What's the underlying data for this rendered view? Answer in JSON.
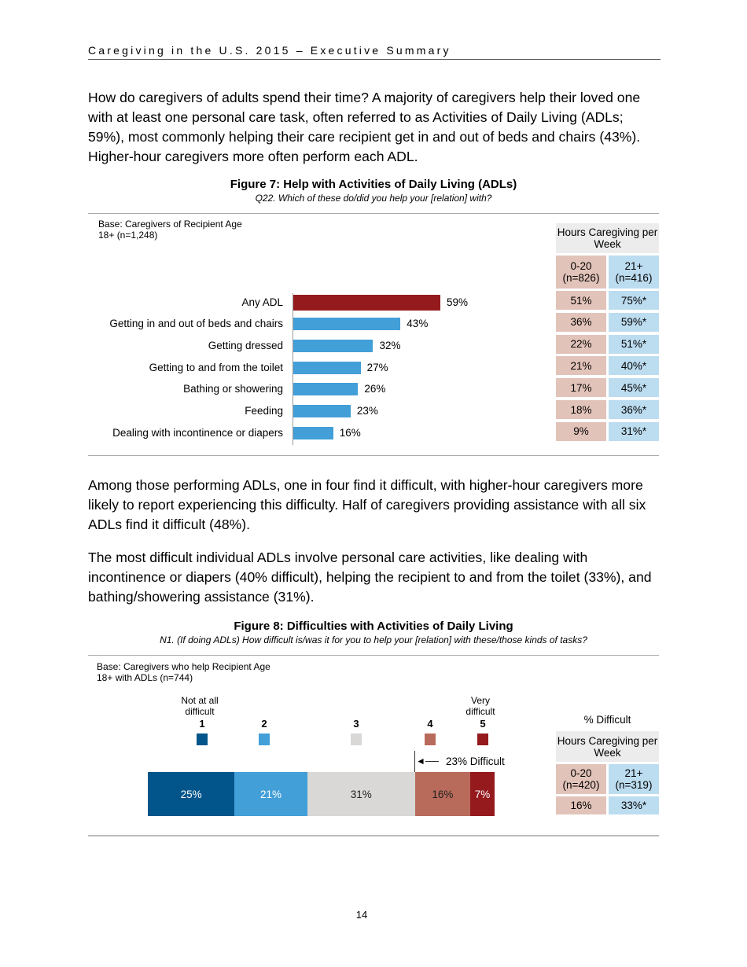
{
  "header": {
    "title": "Caregiving in the U.S. 2015 – Executive Summary"
  },
  "paragraphs": [
    "How do caregivers of adults spend their time? A majority of caregivers help their loved one with at least one personal care task, often referred to as Activities of Daily Living (ADLs; 59%), most commonly helping their care recipient get in and out of beds and chairs (43%). Higher-hour caregivers more often perform each ADL.",
    "Among those performing ADLs, one in four find it difficult, with higher-hour caregivers more likely to report experiencing this difficulty. Half of caregivers providing assistance with all six ADLs find it difficult (48%).",
    "The most difficult individual ADLs involve personal care activities, like dealing with incontinence or diapers (40% difficult), helping the recipient to and from the toilet (33%), and bathing/showering assistance (31%)."
  ],
  "figure7": {
    "title": "Figure 7: Help with Activities of Daily Living (ADLs)",
    "subtitle": "Q22. Which of these do/did you help your [relation] with?",
    "base": "Base: Caregivers of Recipient Age 18+ (n=1,248)",
    "table": {
      "header": "Hours Caregiving per Week",
      "col1": "0-20 (n=826)",
      "col2": "21+ (n=416)",
      "rows": [
        [
          "51%",
          "75%*"
        ],
        [
          "36%",
          "59%*"
        ],
        [
          "22%",
          "51%*"
        ],
        [
          "21%",
          "40%*"
        ],
        [
          "17%",
          "45%*"
        ],
        [
          "18%",
          "36%*"
        ],
        [
          "9%",
          "31%*"
        ]
      ]
    }
  },
  "figure8": {
    "title": "Figure 8: Difficulties with Activities of Daily Living",
    "subtitle": "N1. (If doing ADLs) How difficult is/was it for you to help your [relation] with these/those kinds of tasks?",
    "base": "Base: Caregivers who help Recipient Age 18+ with ADLs (n=744)",
    "scale_low": "Not at all difficult",
    "scale_high": "Very difficult",
    "annotation": "23% Difficult",
    "table": {
      "title": "% Difficult",
      "header": "Hours Caregiving per Week",
      "col1": "0-20 (n=420)",
      "col2": "21+ (n=319)",
      "row": [
        "16%",
        "33%*"
      ]
    }
  },
  "page_number": "14",
  "chart_data": [
    {
      "type": "bar",
      "orientation": "horizontal",
      "categories": [
        "Any ADL",
        "Getting in and out of beds and chairs",
        "Getting dressed",
        "Getting to and from the toilet",
        "Bathing or showering",
        "Feeding",
        "Dealing with incontinence or diapers"
      ],
      "values": [
        59,
        43,
        32,
        27,
        26,
        23,
        16
      ],
      "labels": [
        "59%",
        "43%",
        "32%",
        "27%",
        "26%",
        "23%",
        "16%"
      ],
      "colors": [
        "#951a1e",
        "#429fd8",
        "#429fd8",
        "#429fd8",
        "#429fd8",
        "#429fd8",
        "#429fd8"
      ],
      "grid": false
    },
    {
      "type": "bar",
      "stacked": true,
      "orientation": "horizontal",
      "categories": [
        "1",
        "2",
        "3",
        "4",
        "5"
      ],
      "values": [
        25,
        21,
        31,
        16,
        7
      ],
      "labels": [
        "25%",
        "21%",
        "31%",
        "16%",
        "7%"
      ],
      "colors": [
        "#01558a",
        "#429fd8",
        "#d9d8d6",
        "#b96b5b",
        "#951a1e"
      ],
      "text_colors": [
        "#ffffff",
        "#ffffff",
        "#222222",
        "#222222",
        "#ffffff"
      ],
      "legend": "top",
      "grid": false
    }
  ]
}
